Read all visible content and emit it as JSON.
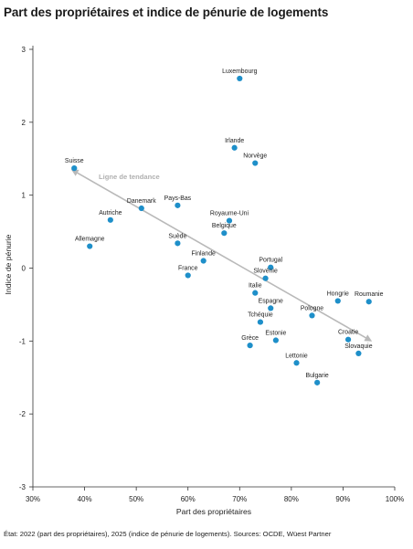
{
  "title": "Part des propriétaires et indice de pénurie de logements",
  "source": "État: 2022 (part des propriétaires), 2025 (indice de pénurie de logements). Sources: OCDE, Wüest Partner",
  "chart_data": {
    "type": "scatter",
    "xlabel": "Part des propriétaires",
    "ylabel": "Indice de pénurie",
    "xlim": [
      30,
      100
    ],
    "ylim": [
      -3,
      3
    ],
    "x_ticks": [
      "30%",
      "40%",
      "50%",
      "60%",
      "70%",
      "80%",
      "90%",
      "100%"
    ],
    "y_ticks": [
      "3",
      "2",
      "1",
      "0",
      "-1",
      "-2",
      "-3"
    ],
    "grid": false,
    "point_color": "#1e8fc9",
    "trend_color": "#b9b9b9",
    "trend_label": "Ligne de tendance",
    "trend_line": {
      "x": [
        38,
        95
      ],
      "y": [
        1.33,
        -0.98
      ]
    },
    "points": [
      {
        "label": "Luxembourg",
        "x": 70,
        "y": 2.6
      },
      {
        "label": "Irlande",
        "x": 69,
        "y": 1.65
      },
      {
        "label": "Norvège",
        "x": 73,
        "y": 1.44
      },
      {
        "label": "Suisse",
        "x": 38,
        "y": 1.37
      },
      {
        "label": "Pays-Bas",
        "x": 58,
        "y": 0.86
      },
      {
        "label": "Danemark",
        "x": 51,
        "y": 0.82
      },
      {
        "label": "Autriche",
        "x": 45,
        "y": 0.66
      },
      {
        "label": "Royaume-Uni",
        "x": 68,
        "y": 0.65
      },
      {
        "label": "Belgique",
        "x": 67,
        "y": 0.48
      },
      {
        "label": "Suède",
        "x": 58,
        "y": 0.34
      },
      {
        "label": "Allemagne",
        "x": 41,
        "y": 0.3
      },
      {
        "label": "Finlande",
        "x": 63,
        "y": 0.1
      },
      {
        "label": "Portugal",
        "x": 76,
        "y": 0.01
      },
      {
        "label": "France",
        "x": 60,
        "y": -0.1
      },
      {
        "label": "Slovénie",
        "x": 75,
        "y": -0.14
      },
      {
        "label": "Italie",
        "x": 73,
        "y": -0.34
      },
      {
        "label": "Hongrie",
        "x": 89,
        "y": -0.45
      },
      {
        "label": "Roumanie",
        "x": 95,
        "y": -0.46
      },
      {
        "label": "Espagne",
        "x": 76,
        "y": -0.55
      },
      {
        "label": "Pologne",
        "x": 84,
        "y": -0.65
      },
      {
        "label": "Tchéquie",
        "x": 74,
        "y": -0.74
      },
      {
        "label": "Estonie",
        "x": 77,
        "y": -0.99
      },
      {
        "label": "Croatie",
        "x": 91,
        "y": -0.98
      },
      {
        "label": "Grèce",
        "x": 72,
        "y": -1.06
      },
      {
        "label": "Slovaquie",
        "x": 93,
        "y": -1.17
      },
      {
        "label": "Lettonie",
        "x": 81,
        "y": -1.3
      },
      {
        "label": "Bulgarie",
        "x": 85,
        "y": -1.57
      }
    ]
  }
}
